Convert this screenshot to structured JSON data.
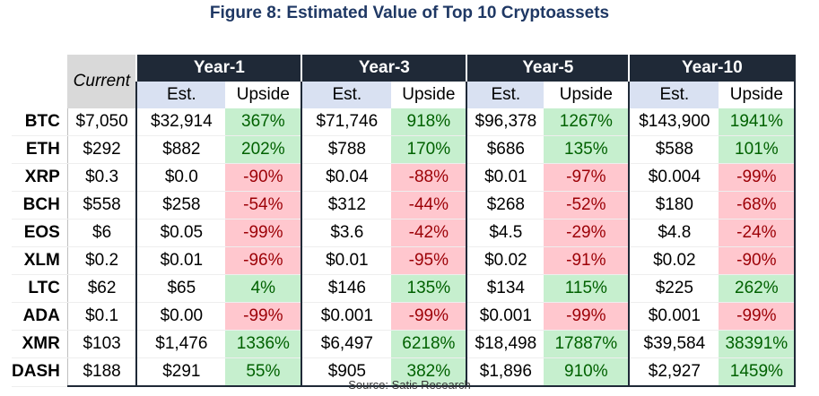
{
  "title": "Figure 8: Estimated Value of Top 10 Cryptoassets",
  "source": "Source: Satis Research",
  "chart_data": {
    "type": "table",
    "current_label": "Current",
    "periods": [
      "Year-1",
      "Year-3",
      "Year-5",
      "Year-10"
    ],
    "subheaders": [
      "Est.",
      "Upside"
    ],
    "rows": [
      {
        "symbol": "BTC",
        "current": "$7,050",
        "values": [
          [
            "$32,914",
            "367%"
          ],
          [
            "$71,746",
            "918%"
          ],
          [
            "$96,378",
            "1267%"
          ],
          [
            "$143,900",
            "1941%"
          ]
        ]
      },
      {
        "symbol": "ETH",
        "current": "$292",
        "values": [
          [
            "$882",
            "202%"
          ],
          [
            "$788",
            "170%"
          ],
          [
            "$686",
            "135%"
          ],
          [
            "$588",
            "101%"
          ]
        ]
      },
      {
        "symbol": "XRP",
        "current": "$0.3",
        "values": [
          [
            "$0.0",
            "-90%"
          ],
          [
            "$0.04",
            "-88%"
          ],
          [
            "$0.01",
            "-97%"
          ],
          [
            "$0.004",
            "-99%"
          ]
        ]
      },
      {
        "symbol": "BCH",
        "current": "$558",
        "values": [
          [
            "$258",
            "-54%"
          ],
          [
            "$312",
            "-44%"
          ],
          [
            "$268",
            "-52%"
          ],
          [
            "$180",
            "-68%"
          ]
        ]
      },
      {
        "symbol": "EOS",
        "current": "$6",
        "values": [
          [
            "$0.05",
            "-99%"
          ],
          [
            "$3.6",
            "-42%"
          ],
          [
            "$4.5",
            "-29%"
          ],
          [
            "$4.8",
            "-24%"
          ]
        ]
      },
      {
        "symbol": "XLM",
        "current": "$0.2",
        "values": [
          [
            "$0.01",
            "-96%"
          ],
          [
            "$0.01",
            "-95%"
          ],
          [
            "$0.02",
            "-91%"
          ],
          [
            "$0.02",
            "-90%"
          ]
        ]
      },
      {
        "symbol": "LTC",
        "current": "$62",
        "values": [
          [
            "$65",
            "4%"
          ],
          [
            "$146",
            "135%"
          ],
          [
            "$134",
            "115%"
          ],
          [
            "$225",
            "262%"
          ]
        ]
      },
      {
        "symbol": "ADA",
        "current": "$0.1",
        "values": [
          [
            "$0.00",
            "-99%"
          ],
          [
            "$0.001",
            "-99%"
          ],
          [
            "$0.001",
            "-99%"
          ],
          [
            "$0.001",
            "-99%"
          ]
        ]
      },
      {
        "symbol": "XMR",
        "current": "$103",
        "values": [
          [
            "$1,476",
            "1336%"
          ],
          [
            "$6,497",
            "6218%"
          ],
          [
            "$18,498",
            "17887%"
          ],
          [
            "$39,584",
            "38391%"
          ]
        ]
      },
      {
        "symbol": "DASH",
        "current": "$188",
        "values": [
          [
            "$291",
            "55%"
          ],
          [
            "$905",
            "382%"
          ],
          [
            "$1,896",
            "910%"
          ],
          [
            "$2,927",
            "1459%"
          ]
        ]
      }
    ],
    "colors": {
      "header_bg": "#1f2937",
      "positive_bg": "#c6efce",
      "positive_text": "#006100",
      "negative_bg": "#ffc7ce",
      "negative_text": "#9c0006",
      "title": "#1f3864"
    }
  }
}
